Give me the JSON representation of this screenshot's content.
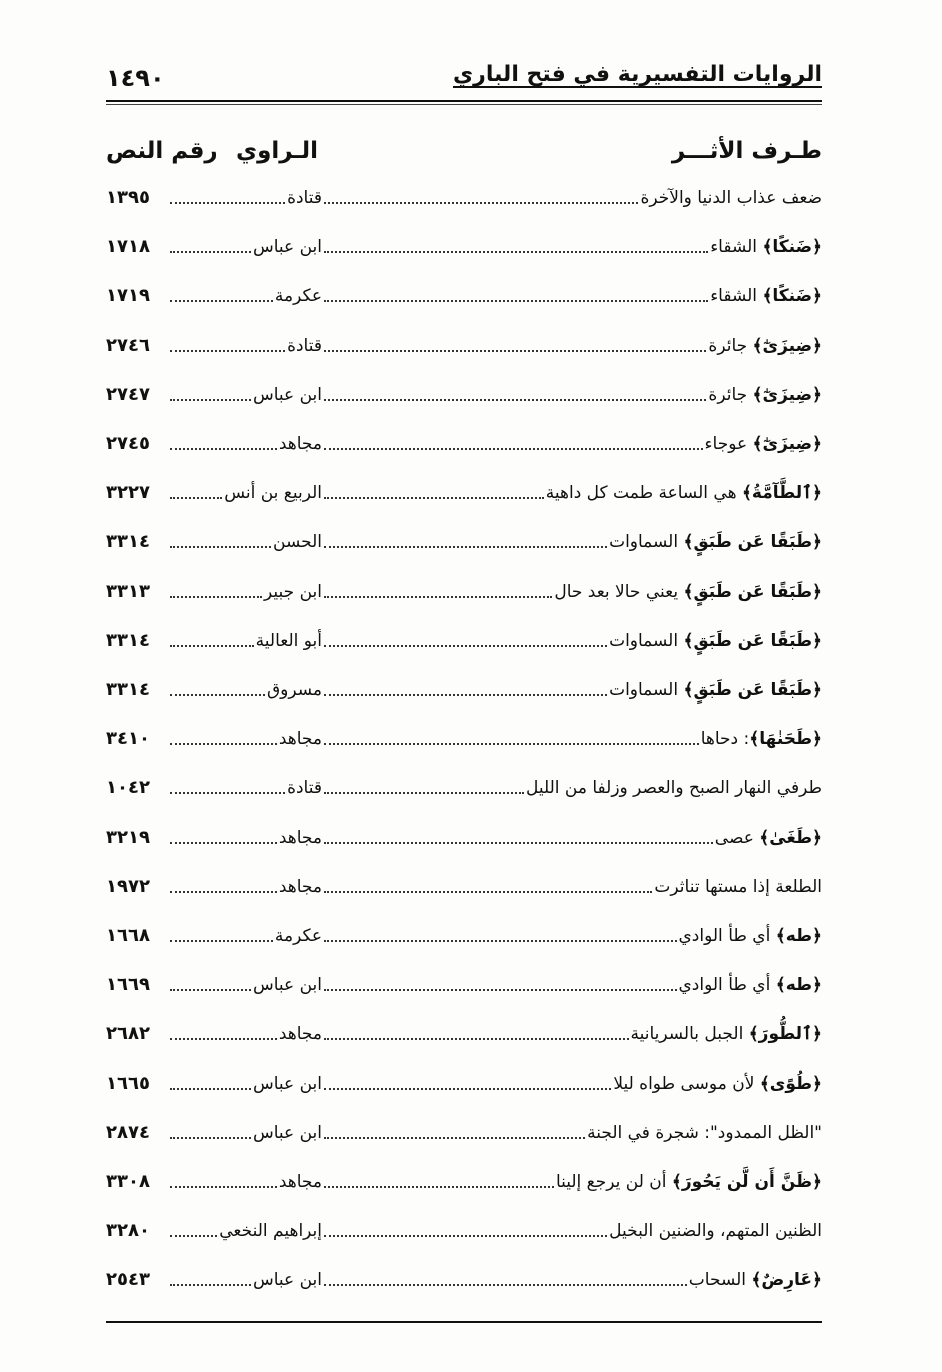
{
  "header": {
    "page_number": "١٤٩٠",
    "title": "الروايات التفسيرية في فتح الباري"
  },
  "columns": {
    "entry": "طـرف الأثـــر",
    "narrator": "الـراوي",
    "number": "رقم النص"
  },
  "rows": [
    {
      "q": "",
      "entry": "ضعف عذاب الدنيا والآخرة",
      "narrator": "قتادة",
      "number": "١٣٩٥"
    },
    {
      "q": "﴿ضَنكًا﴾",
      "entry": " الشقاء",
      "narrator": "ابن عباس",
      "number": "١٧١٨"
    },
    {
      "q": "﴿ضَنكًا﴾",
      "entry": " الشقاء",
      "narrator": "عكرمة",
      "number": "١٧١٩"
    },
    {
      "q": "﴿ضِيزَىٰٓ﴾",
      "entry": " جائرة",
      "narrator": "قتادة",
      "number": "٢٧٤٦"
    },
    {
      "q": "﴿ضِيزَىٰٓ﴾",
      "entry": " جائرة",
      "narrator": "ابن عباس",
      "number": "٢٧٤٧"
    },
    {
      "q": "﴿ضِيزَىٰٓ﴾",
      "entry": " عوجاء",
      "narrator": "مجاهد",
      "number": "٢٧٤٥"
    },
    {
      "q": "﴿ٱلطَّآمَّةُ﴾",
      "entry": " هي الساعة طمت كل داهية",
      "narrator": "الربيع بن أنس",
      "number": "٣٢٢٧"
    },
    {
      "q": "﴿طَبَقًا عَن طَبَقٍ﴾",
      "entry": " السماوات",
      "narrator": "الحسن",
      "number": "٣٣١٤"
    },
    {
      "q": "﴿طَبَقًا عَن طَبَقٍ﴾",
      "entry": " يعني حالا بعد حال",
      "narrator": "ابن جبير",
      "number": "٣٣١٣"
    },
    {
      "q": "﴿طَبَقًا عَن طَبَقٍ﴾",
      "entry": " السماوات",
      "narrator": "أبو العالية",
      "number": "٣٣١٤"
    },
    {
      "q": "﴿طَبَقًا عَن طَبَقٍ﴾",
      "entry": " السماوات",
      "narrator": "مسروق",
      "number": "٣٣١٤"
    },
    {
      "q": "﴿طَحَنٰهَا﴾",
      "entry": ": دحاها",
      "narrator": "مجاهد",
      "number": "٣٤١٠"
    },
    {
      "q": "",
      "entry": "طرفي النهار الصبح والعصر وزلفا من الليل",
      "narrator": "قتادة",
      "number": "١٠٤٢"
    },
    {
      "q": "﴿طَغَىٰ﴾",
      "entry": " عصى",
      "narrator": "مجاهد",
      "number": "٣٢١٩"
    },
    {
      "q": "",
      "entry": "الطلعة إذا مستها تناثرت",
      "narrator": "مجاهد",
      "number": "١٩٧٢"
    },
    {
      "q": "﴿طه﴾",
      "entry": " أي طأ الوادي",
      "narrator": "عكرمة",
      "number": "١٦٦٨"
    },
    {
      "q": "﴿طه﴾",
      "entry": " أي طأ الوادي",
      "narrator": "ابن عباس",
      "number": "١٦٦٩"
    },
    {
      "q": "﴿ٱلطُّورَ﴾",
      "entry": " الجبل بالسريانية",
      "narrator": "مجاهد",
      "number": "٢٦٨٢"
    },
    {
      "q": "﴿طُوًى﴾",
      "entry": " لأن موسى طواه ليلا",
      "narrator": "ابن عباس",
      "number": "١٦٦٥"
    },
    {
      "q": "",
      "entry": "\"الظل الممدود\": شجرة في الجنة",
      "narrator": "ابن عباس",
      "number": "٢٨٧٤"
    },
    {
      "q": "﴿ظَنَّ أَن لَّن يَحُورَ﴾",
      "entry": " أن لن يرجع إلينا",
      "narrator": "مجاهد",
      "number": "٣٣٠٨"
    },
    {
      "q": "",
      "entry": "الظنين المتهم، والضنين البخيل",
      "narrator": "إبراهيم النخعي",
      "number": "٣٢٨٠"
    },
    {
      "q": "﴿عَارِضٌ﴾",
      "entry": " السحاب",
      "narrator": "ابن عباس",
      "number": "٢٥٤٣"
    }
  ]
}
